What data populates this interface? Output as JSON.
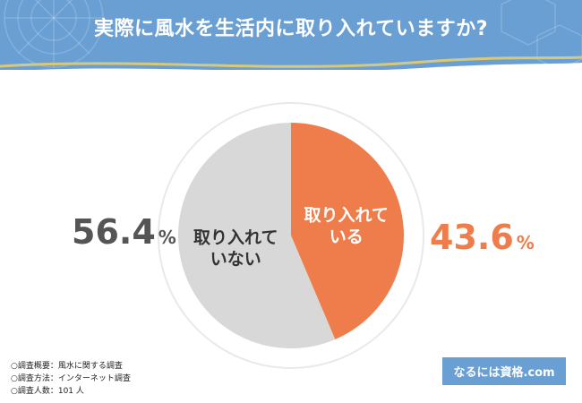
{
  "title": "実際に風水を生活内に取り入れていますか?",
  "chart_data": {
    "type": "pie",
    "slices": [
      {
        "label": "取り入れている",
        "label_lines": [
          "取り入れて",
          "いる"
        ],
        "value": 43.6,
        "color": "#ef7d4c"
      },
      {
        "label": "取り入れていない",
        "label_lines": [
          "取り入れて",
          "いない"
        ],
        "value": 56.4,
        "color": "#d8d8d8"
      }
    ],
    "value_labels": {
      "not_adopting": {
        "number": "56.4",
        "unit": "%"
      },
      "adopting": {
        "number": "43.6",
        "unit": "%"
      }
    }
  },
  "notes": [
    "○調査概要：風水に関する調査",
    "○調査方法：インターネット調査",
    "○調査人数：101 人"
  ],
  "brand": "なるには資格.com",
  "colors": {
    "header": "#6a9fd4",
    "accent": "#ef7d4c",
    "gray_slice": "#d8d8d8",
    "gold_line": "#d8c97a"
  }
}
